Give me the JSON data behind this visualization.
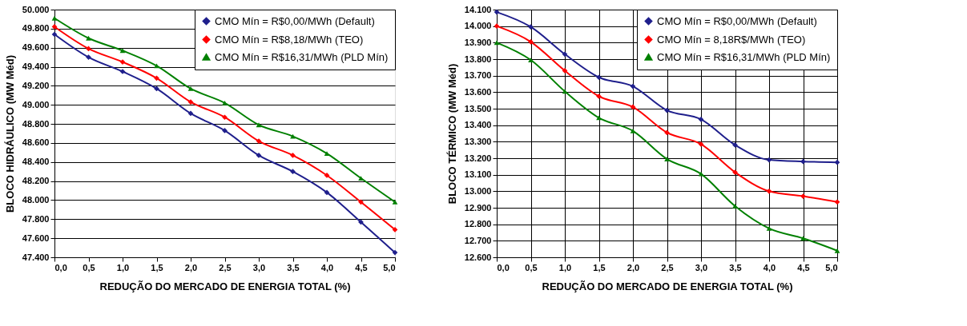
{
  "chart_data": [
    {
      "type": "line",
      "xlabel": "REDUÇÃO DO MERCADO DE ENERGIA TOTAL (%)",
      "ylabel": "BLOCO HIDRÁULICO (MW Méd)",
      "x": [
        0,
        0.5,
        1,
        1.5,
        2,
        2.5,
        3,
        3.5,
        4,
        4.5,
        5
      ],
      "series": [
        {
          "name": "CMO Mín = R$0,00/MWh (Default)",
          "color": "#1f1f8c",
          "marker": "diamond",
          "values": [
            49740,
            49500,
            49350,
            49170,
            48910,
            48730,
            48470,
            48300,
            48080,
            47770,
            47450
          ]
        },
        {
          "name": "CMO Mín = R$8,18/MWh (TEO)",
          "color": "#ff0000",
          "marker": "diamond",
          "values": [
            49820,
            49590,
            49450,
            49280,
            49030,
            48870,
            48620,
            48470,
            48260,
            47980,
            47690
          ]
        },
        {
          "name": "CMO Mín = R$16,31/MWh (PLD Mín)",
          "color": "#008000",
          "marker": "triangle",
          "values": [
            49910,
            49700,
            49570,
            49410,
            49170,
            49020,
            48790,
            48670,
            48490,
            48230,
            47980
          ]
        }
      ],
      "xlim": [
        0,
        5
      ],
      "xticks": [
        {
          "value": 0,
          "label": "0,0"
        },
        {
          "value": 0.5,
          "label": "0,5"
        },
        {
          "value": 1,
          "label": "1,0"
        },
        {
          "value": 1.5,
          "label": "1,5"
        },
        {
          "value": 2,
          "label": "2,0"
        },
        {
          "value": 2.5,
          "label": "2,5"
        },
        {
          "value": 3,
          "label": "3,0"
        },
        {
          "value": 3.5,
          "label": "3,5"
        },
        {
          "value": 4,
          "label": "4,0"
        },
        {
          "value": 4.5,
          "label": "4,5"
        },
        {
          "value": 5,
          "label": "5,0"
        }
      ],
      "ylim": [
        47400,
        50000
      ],
      "yticks": [
        {
          "value": 47400,
          "label": "47.400"
        },
        {
          "value": 47600,
          "label": "47.600"
        },
        {
          "value": 47800,
          "label": "47.800"
        },
        {
          "value": 48000,
          "label": "48.000"
        },
        {
          "value": 48200,
          "label": "48.200"
        },
        {
          "value": 48400,
          "label": "48.400"
        },
        {
          "value": 48600,
          "label": "48.600"
        },
        {
          "value": 48800,
          "label": "48.800"
        },
        {
          "value": 49000,
          "label": "49.000"
        },
        {
          "value": 49200,
          "label": "49.200"
        },
        {
          "value": 49400,
          "label": "49.400"
        },
        {
          "value": 49600,
          "label": "49.600"
        },
        {
          "value": 49800,
          "label": "49.800"
        },
        {
          "value": 50000,
          "label": "50.000"
        }
      ],
      "grid": "y",
      "legend": "top right",
      "line_style": "solid"
    },
    {
      "type": "line",
      "xlabel": "REDUÇÃO DO MERCADO DE ENERGIA TOTAL (%)",
      "ylabel": "BLOCO TÉRMICO (MW Méd)",
      "x": [
        0,
        0.5,
        1,
        1.5,
        2,
        2.5,
        3,
        3.5,
        4,
        4.5,
        5
      ],
      "series": [
        {
          "name": "CMO Mín = R$0,00/MWh (Default)",
          "color": "#1f1f8c",
          "marker": "diamond",
          "values": [
            14085,
            13995,
            13830,
            13690,
            13635,
            13490,
            13435,
            13280,
            13190,
            13180,
            13175
          ]
        },
        {
          "name": "CMO Mín = 8,18R$/MWh (TEO)",
          "color": "#ff0000",
          "marker": "diamond",
          "values": [
            14000,
            13905,
            13730,
            13575,
            13510,
            13355,
            13285,
            13115,
            13000,
            12970,
            12935
          ]
        },
        {
          "name": "CMO Mín = R$16,31/MWh (PLD Mín)",
          "color": "#008000",
          "marker": "triangle",
          "values": [
            13900,
            13795,
            13605,
            13445,
            13365,
            13195,
            13105,
            12910,
            12775,
            12715,
            12640
          ]
        }
      ],
      "xlim": [
        0,
        5
      ],
      "xticks": [
        {
          "value": 0,
          "label": "0,0"
        },
        {
          "value": 0.5,
          "label": "0,5"
        },
        {
          "value": 1,
          "label": "1,0"
        },
        {
          "value": 1.5,
          "label": "1,5"
        },
        {
          "value": 2,
          "label": "2,0"
        },
        {
          "value": 2.5,
          "label": "2,5"
        },
        {
          "value": 3,
          "label": "3,0"
        },
        {
          "value": 3.5,
          "label": "3,5"
        },
        {
          "value": 4,
          "label": "4,0"
        },
        {
          "value": 4.5,
          "label": "4,5"
        },
        {
          "value": 5,
          "label": "5,0"
        }
      ],
      "ylim": [
        12600,
        14100
      ],
      "yticks": [
        {
          "value": 12600,
          "label": "12.600"
        },
        {
          "value": 12700,
          "label": "12.700"
        },
        {
          "value": 12800,
          "label": "12.800"
        },
        {
          "value": 12900,
          "label": "12.900"
        },
        {
          "value": 13000,
          "label": "13.000"
        },
        {
          "value": 13100,
          "label": "13.100"
        },
        {
          "value": 13200,
          "label": "13.200"
        },
        {
          "value": 13300,
          "label": "13.300"
        },
        {
          "value": 13400,
          "label": "13.400"
        },
        {
          "value": 13500,
          "label": "13.500"
        },
        {
          "value": 13600,
          "label": "13.600"
        },
        {
          "value": 13700,
          "label": "13.700"
        },
        {
          "value": 13800,
          "label": "13.800"
        },
        {
          "value": 13900,
          "label": "13.900"
        },
        {
          "value": 14000,
          "label": "14.000"
        },
        {
          "value": 14100,
          "label": "14.100"
        }
      ],
      "grid": true,
      "legend": "top right",
      "line_style": "solid"
    }
  ]
}
